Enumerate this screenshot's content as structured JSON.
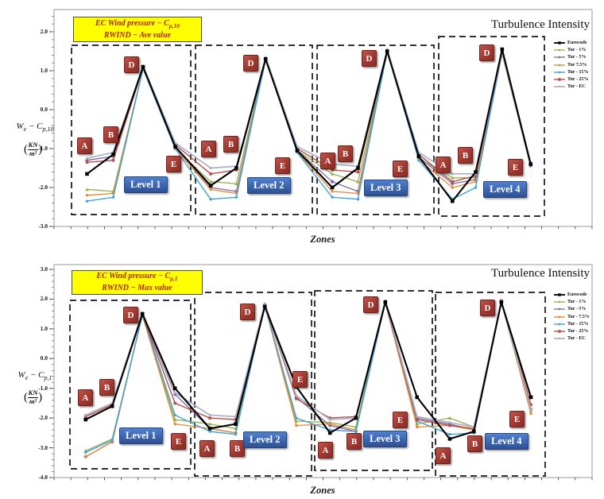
{
  "figure_name": "EC wind pressure coefficients vs RWIND turbulence intensity",
  "chart_data": [
    {
      "type": "line",
      "title": {
        "line1_pre": "EC Wind pressure − C",
        "line1_sub": "p,10",
        "line2": "RWIND − Ave value"
      },
      "corner_label": "Turbulence Intensity",
      "xlabel": "Zones",
      "ylabel": {
        "sym": "W",
        "sym_sub": "e",
        "minus": "−",
        "c": "C",
        "c_sub": "p,10"
      },
      "unit": {
        "num": "KN",
        "den": "m²"
      },
      "ylim": [
        -3.0,
        2.5
      ],
      "grid": false,
      "legend_position": "inside-right",
      "y_ticks": [
        {
          "label": "2.0",
          "v": 2.0
        },
        {
          "label": "1.0",
          "v": 1.0
        },
        {
          "label": "0.0",
          "v": 0.0
        },
        {
          "label": "-1.0",
          "v": -1.0
        },
        {
          "label": "-2.0",
          "v": -2.0
        },
        {
          "label": "-3.0",
          "v": -3.0
        }
      ],
      "zones": [
        "A",
        "B",
        "D",
        "E"
      ],
      "levels": [
        "Level 1",
        "Level 2",
        "Level 3",
        "Level 4"
      ],
      "categories": [
        "L1-A",
        "L1-B",
        "L1-D",
        "L1-E",
        "L2-A",
        "L2-B",
        "L2-D",
        "L2-E",
        "L3-A",
        "L3-B",
        "L3-D",
        "L3-E",
        "L4-A",
        "L4-B",
        "L4-D",
        "L4-E"
      ],
      "series": [
        {
          "name": "Eurocode",
          "color": "#000000",
          "marker": "square",
          "msize": 4.6,
          "width": 2.1,
          "values": [
            -1.65,
            -1.15,
            1.1,
            -0.95,
            -1.95,
            -1.5,
            1.3,
            -1.05,
            -2.0,
            -1.5,
            1.5,
            -1.2,
            -2.35,
            -1.6,
            1.55,
            -1.4
          ]
        },
        {
          "name": "Tur - 1%",
          "color": "#94B04F",
          "marker": "triangle",
          "msize": 3.6,
          "width": 1.3,
          "values": [
            -2.05,
            -2.1,
            1.05,
            -1.0,
            -1.85,
            -1.9,
            1.28,
            -1.05,
            -1.65,
            -1.85,
            1.48,
            -1.25,
            -1.75,
            -1.75,
            1.45,
            -1.42
          ]
        },
        {
          "name": "Tur - 5%",
          "color": "#7E68A8",
          "marker": "diamond",
          "msize": 3.4,
          "width": 1.3,
          "values": [
            -1.3,
            -1.2,
            1.08,
            -0.95,
            -2.0,
            -2.1,
            1.3,
            -1.05,
            -1.85,
            -2.1,
            1.5,
            -1.22,
            -1.9,
            -1.8,
            1.45,
            -1.4
          ]
        },
        {
          "name": "Tur 7.5%",
          "color": "#E8862C",
          "marker": "dot",
          "msize": 1.7,
          "width": 1.3,
          "values": [
            -2.2,
            -2.15,
            1.05,
            -1.0,
            -2.05,
            -2.15,
            1.28,
            -1.08,
            -2.1,
            -2.15,
            1.48,
            -1.28,
            -2.0,
            -1.85,
            1.45,
            -1.45
          ]
        },
        {
          "name": "Tur - 15%",
          "color": "#41A2D8",
          "marker": "dot",
          "msize": 1.7,
          "width": 1.4,
          "values": [
            -2.35,
            -2.25,
            1.05,
            -1.0,
            -2.3,
            -2.25,
            1.3,
            -1.1,
            -2.25,
            -2.3,
            1.5,
            -1.3,
            -2.3,
            -2.0,
            1.45,
            -1.45
          ]
        },
        {
          "name": "Tur - 25%",
          "color": "#B6504B",
          "marker": "square",
          "msize": 3.6,
          "width": 1.4,
          "values": [
            -1.35,
            -1.3,
            1.08,
            -0.9,
            -1.65,
            -1.55,
            1.3,
            -1.0,
            -1.55,
            -1.6,
            1.5,
            -1.15,
            -1.85,
            -1.7,
            1.45,
            -1.38
          ]
        },
        {
          "name": "Tur - EC",
          "color": "#AAB2C8",
          "marker": "dot",
          "msize": 1.6,
          "width": 1.7,
          "values": [
            -1.25,
            -1.1,
            1.12,
            -0.85,
            -1.5,
            -1.45,
            1.35,
            -0.95,
            -1.4,
            -1.45,
            1.55,
            -1.1,
            -1.65,
            -1.65,
            1.48,
            -1.35
          ]
        }
      ]
    },
    {
      "type": "line",
      "title": {
        "line1_pre": "EC Wind pressure − C",
        "line1_sub": "p,1",
        "line2": "RWIND − Max value"
      },
      "corner_label": "Turbulence Intensity",
      "xlabel": "Zones",
      "ylabel": {
        "sym": "W",
        "sym_sub": "e",
        "minus": "−",
        "c": "C",
        "c_sub": "p,1"
      },
      "unit": {
        "num": "KN",
        "den": "m²"
      },
      "ylim": [
        -4.0,
        3.0
      ],
      "grid": false,
      "legend_position": "inside-right",
      "y_ticks": [
        {
          "label": "3.0",
          "v": 3.0
        },
        {
          "label": "2.0",
          "v": 2.0
        },
        {
          "label": "1.0",
          "v": 1.0
        },
        {
          "label": "0.0",
          "v": 0.0
        },
        {
          "label": "-1.0",
          "v": -1.0
        },
        {
          "label": "-2.0",
          "v": -2.0
        },
        {
          "label": "-3.0",
          "v": -3.0
        },
        {
          "label": "-4.0",
          "v": -4.0
        }
      ],
      "zones": [
        "A",
        "B",
        "D",
        "E"
      ],
      "levels": [
        "Level 1",
        "Level 2",
        "Level 3",
        "Level 4"
      ],
      "categories": [
        "L1-A",
        "L1-B",
        "L1-D",
        "L1-E",
        "L2-A",
        "L2-B",
        "L2-D",
        "L2-E",
        "L3-A",
        "L3-B",
        "L3-D",
        "L3-E",
        "L4-A",
        "L4-B",
        "L4-D",
        "L4-E"
      ],
      "series": [
        {
          "name": "Eurocode",
          "color": "#000000",
          "marker": "square",
          "msize": 4.6,
          "width": 2.1,
          "values": [
            -2.05,
            -1.6,
            1.5,
            -1.0,
            -2.35,
            -2.2,
            1.75,
            -0.95,
            -2.5,
            -2.0,
            1.9,
            -1.3,
            -2.7,
            -2.45,
            1.9,
            -1.3
          ]
        },
        {
          "name": "Tur - 1%",
          "color": "#94B04F",
          "marker": "triangle",
          "msize": 3.6,
          "width": 1.3,
          "values": [
            -3.1,
            -2.7,
            1.45,
            -2.05,
            -2.2,
            -2.35,
            1.78,
            -2.1,
            -2.15,
            -2.3,
            1.88,
            -2.2,
            -2.0,
            -2.3,
            1.9,
            -1.75
          ]
        },
        {
          "name": "Tur - 5%",
          "color": "#7E68A8",
          "marker": "diamond",
          "msize": 3.4,
          "width": 1.3,
          "values": [
            -3.3,
            -2.8,
            1.48,
            -1.2,
            -2.35,
            -2.5,
            1.8,
            -1.3,
            -2.25,
            -2.45,
            1.9,
            -2.0,
            -2.2,
            -2.4,
            1.92,
            -1.7
          ]
        },
        {
          "name": "Tur - 7.5%",
          "color": "#E8862C",
          "marker": "dot",
          "msize": 1.7,
          "width": 1.3,
          "values": [
            -3.3,
            -2.8,
            1.45,
            -2.2,
            -2.35,
            -2.5,
            1.78,
            -2.25,
            -2.2,
            -2.4,
            1.88,
            -2.3,
            -2.25,
            -2.4,
            1.9,
            -1.85
          ]
        },
        {
          "name": "Tur - 15%",
          "color": "#41A2D8",
          "marker": "dot",
          "msize": 1.7,
          "width": 1.4,
          "values": [
            -3.15,
            -2.75,
            1.48,
            -1.9,
            -2.45,
            -2.55,
            1.8,
            -2.0,
            -2.4,
            -2.45,
            1.9,
            -2.1,
            -2.55,
            -2.5,
            1.92,
            -1.7
          ]
        },
        {
          "name": "Tur - 25%",
          "color": "#B6504B",
          "marker": "square",
          "msize": 3.6,
          "width": 1.4,
          "values": [
            -1.95,
            -1.55,
            1.48,
            -1.5,
            -2.0,
            -2.05,
            1.8,
            -1.35,
            -2.0,
            -1.95,
            1.9,
            -2.05,
            -2.25,
            -2.35,
            1.95,
            -1.55
          ]
        },
        {
          "name": "Tur - EC",
          "color": "#AAB2C8",
          "marker": "dot",
          "msize": 1.6,
          "width": 1.7,
          "values": [
            -1.9,
            -1.5,
            1.55,
            -1.15,
            -1.9,
            -1.95,
            1.85,
            -1.25,
            -2.05,
            -2.0,
            1.95,
            -1.95,
            -2.15,
            -2.3,
            1.95,
            -1.7
          ]
        }
      ]
    }
  ]
}
